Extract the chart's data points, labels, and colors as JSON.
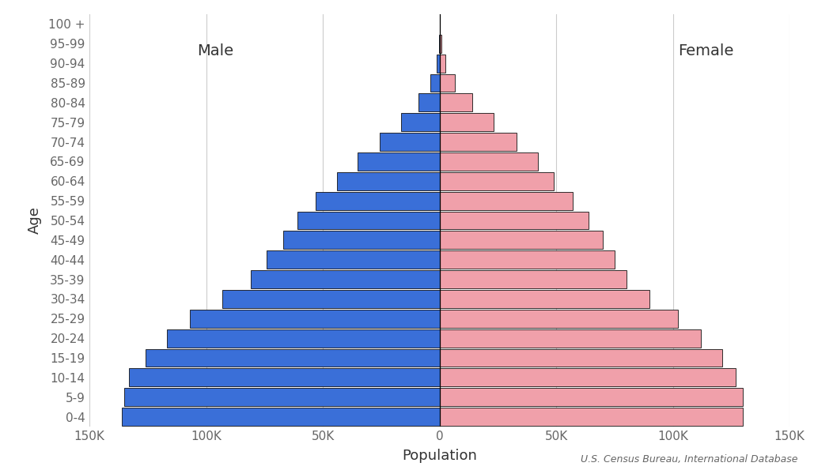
{
  "age_groups": [
    "0-4",
    "5-9",
    "10-14",
    "15-19",
    "20-24",
    "25-29",
    "30-34",
    "35-39",
    "40-44",
    "45-49",
    "50-54",
    "55-59",
    "60-64",
    "65-69",
    "70-74",
    "75-79",
    "80-84",
    "85-89",
    "90-94",
    "95-99",
    "100 +"
  ],
  "male": [
    136000,
    135000,
    133000,
    126000,
    117000,
    107000,
    93000,
    81000,
    74000,
    67000,
    61000,
    53000,
    44000,
    35000,
    25500,
    16500,
    9200,
    3800,
    1100,
    260,
    38
  ],
  "female": [
    130000,
    130000,
    127000,
    121000,
    112000,
    102000,
    90000,
    80000,
    75000,
    70000,
    64000,
    57000,
    49000,
    42000,
    33000,
    23000,
    14000,
    6500,
    2400,
    700,
    140
  ],
  "male_color": "#3a6fd8",
  "female_color": "#f0a0aa",
  "bar_edge_color": "#111111",
  "bar_edge_width": 0.6,
  "xlabel": "Population",
  "ylabel": "Age",
  "male_label": "Male",
  "female_label": "Female",
  "xlim": 150000,
  "source": "U.S. Census Bureau, International Database",
  "background_color": "#ffffff",
  "grid_color": "#cccccc",
  "tick_label_color": "#666666",
  "label_color": "#333333",
  "axis_fontsize": 13,
  "tick_fontsize": 11,
  "source_fontsize": 9,
  "label_fontsize": 14
}
